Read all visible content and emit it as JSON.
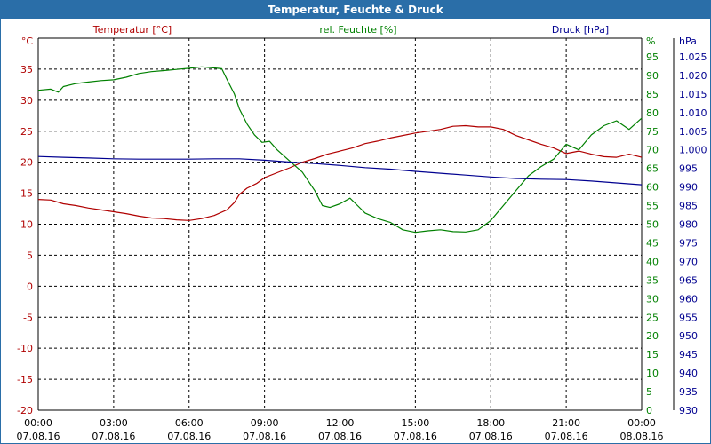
{
  "title": "Temperatur, Feuchte & Druck",
  "colors": {
    "title_bg": "#2a6ea8",
    "temperature": "#b00000",
    "humidity": "#008000",
    "pressure": "#000090",
    "grid": "#000000"
  },
  "chart_data": {
    "type": "line",
    "title": "Temperatur, Feuchte & Druck",
    "grid": true,
    "x_ticks": [
      {
        "time": "00:00",
        "date": "07.08.16"
      },
      {
        "time": "03:00",
        "date": "07.08.16"
      },
      {
        "time": "06:00",
        "date": "07.08.16"
      },
      {
        "time": "09:00",
        "date": "07.08.16"
      },
      {
        "time": "12:00",
        "date": "07.08.16"
      },
      {
        "time": "15:00",
        "date": "07.08.16"
      },
      {
        "time": "18:00",
        "date": "07.08.16"
      },
      {
        "time": "21:00",
        "date": "07.08.16"
      },
      {
        "time": "00:00",
        "date": "08.08.16"
      }
    ],
    "x_range_hours": [
      0,
      24
    ],
    "axes": {
      "temperature": {
        "label": "Temperatur [°C]",
        "unit": "°C",
        "range": [
          -20,
          40
        ],
        "ticks": [
          -20,
          -15,
          -10,
          -5,
          0,
          5,
          10,
          15,
          20,
          25,
          30,
          35
        ]
      },
      "humidity": {
        "label": "rel. Feuchte [%]",
        "unit": "%",
        "range": [
          0,
          100
        ],
        "ticks": [
          0,
          5,
          10,
          15,
          20,
          25,
          30,
          35,
          40,
          45,
          50,
          55,
          60,
          65,
          70,
          75,
          80,
          85,
          90,
          95
        ]
      },
      "pressure": {
        "label": "Druck [hPa]",
        "unit": "hPa",
        "range": [
          930,
          1030
        ],
        "ticks": [
          "930",
          "935",
          "940",
          "945",
          "950",
          "955",
          "960",
          "965",
          "970",
          "975",
          "980",
          "985",
          "990",
          "995",
          "1.000",
          "1.005",
          "1.010",
          "1.015",
          "1.020",
          "1.025"
        ]
      }
    },
    "series": [
      {
        "name": "Temperatur [°C]",
        "axis": "temperature",
        "points": [
          [
            0,
            14
          ],
          [
            0.5,
            13.9
          ],
          [
            1,
            13.3
          ],
          [
            1.5,
            13
          ],
          [
            2,
            12.6
          ],
          [
            2.5,
            12.3
          ],
          [
            3,
            12
          ],
          [
            3.5,
            11.7
          ],
          [
            4,
            11.3
          ],
          [
            4.5,
            11
          ],
          [
            5,
            10.9
          ],
          [
            5.5,
            10.7
          ],
          [
            6,
            10.6
          ],
          [
            6.5,
            10.9
          ],
          [
            7,
            11.4
          ],
          [
            7.5,
            12.3
          ],
          [
            7.8,
            13.5
          ],
          [
            8,
            14.8
          ],
          [
            8.3,
            15.8
          ],
          [
            8.7,
            16.6
          ],
          [
            9,
            17.5
          ],
          [
            9.5,
            18.3
          ],
          [
            10,
            19.1
          ],
          [
            10.5,
            20
          ],
          [
            11,
            20.6
          ],
          [
            11.5,
            21.3
          ],
          [
            12,
            21.8
          ],
          [
            12.5,
            22.3
          ],
          [
            13,
            23
          ],
          [
            13.5,
            23.4
          ],
          [
            14,
            23.9
          ],
          [
            14.5,
            24.3
          ],
          [
            15,
            24.7
          ],
          [
            15.5,
            25
          ],
          [
            16,
            25.3
          ],
          [
            16.5,
            25.8
          ],
          [
            17,
            25.9
          ],
          [
            17.5,
            25.7
          ],
          [
            18,
            25.7
          ],
          [
            18.5,
            25.3
          ],
          [
            19,
            24.3
          ],
          [
            19.5,
            23.6
          ],
          [
            20,
            22.9
          ],
          [
            20.5,
            22.3
          ],
          [
            21,
            21.4
          ],
          [
            21.5,
            21.8
          ],
          [
            22,
            21.3
          ],
          [
            22.5,
            20.9
          ],
          [
            23,
            20.8
          ],
          [
            23.5,
            21.3
          ],
          [
            24,
            20.8
          ]
        ]
      },
      {
        "name": "rel. Feuchte [%]",
        "axis": "humidity",
        "points": [
          [
            0,
            86
          ],
          [
            0.5,
            86.3
          ],
          [
            0.8,
            85.5
          ],
          [
            1,
            87
          ],
          [
            1.5,
            87.8
          ],
          [
            2,
            88.2
          ],
          [
            2.5,
            88.6
          ],
          [
            3,
            88.8
          ],
          [
            3.5,
            89.5
          ],
          [
            4,
            90.5
          ],
          [
            4.5,
            91
          ],
          [
            5,
            91.3
          ],
          [
            5.5,
            91.6
          ],
          [
            6,
            91.9
          ],
          [
            6.5,
            92.3
          ],
          [
            7,
            92
          ],
          [
            7.3,
            91.8
          ],
          [
            7.5,
            89
          ],
          [
            7.8,
            85
          ],
          [
            8,
            81
          ],
          [
            8.3,
            77
          ],
          [
            8.6,
            74
          ],
          [
            8.9,
            72
          ],
          [
            9.2,
            72.3
          ],
          [
            9.5,
            70
          ],
          [
            10,
            67
          ],
          [
            10.5,
            64
          ],
          [
            11,
            59
          ],
          [
            11.3,
            55
          ],
          [
            11.6,
            54.5
          ],
          [
            12,
            55.5
          ],
          [
            12.4,
            57
          ],
          [
            12.7,
            55
          ],
          [
            13,
            53
          ],
          [
            13.5,
            51.5
          ],
          [
            14,
            50.5
          ],
          [
            14.5,
            48.5
          ],
          [
            15,
            47.8
          ],
          [
            15.5,
            48.2
          ],
          [
            16,
            48.5
          ],
          [
            16.5,
            48
          ],
          [
            17,
            47.9
          ],
          [
            17.5,
            48.5
          ],
          [
            18,
            51
          ],
          [
            18.5,
            55
          ],
          [
            19,
            59
          ],
          [
            19.5,
            63
          ],
          [
            20,
            65.5
          ],
          [
            20.5,
            67.5
          ],
          [
            21,
            71.5
          ],
          [
            21.5,
            70
          ],
          [
            22,
            74
          ],
          [
            22.5,
            76.5
          ],
          [
            23,
            77.8
          ],
          [
            23.5,
            75.5
          ],
          [
            24,
            78.5
          ]
        ]
      },
      {
        "name": "Druck [hPa]",
        "axis": "pressure",
        "points": [
          [
            0,
            998.2
          ],
          [
            1,
            998
          ],
          [
            2,
            997.8
          ],
          [
            3,
            997.6
          ],
          [
            4,
            997.5
          ],
          [
            5,
            997.5
          ],
          [
            6,
            997.5
          ],
          [
            7,
            997.6
          ],
          [
            8,
            997.6
          ],
          [
            9,
            997.2
          ],
          [
            10,
            996.7
          ],
          [
            11,
            996.3
          ],
          [
            12,
            995.8
          ],
          [
            13,
            995.2
          ],
          [
            14,
            994.8
          ],
          [
            15,
            994.2
          ],
          [
            16,
            993.7
          ],
          [
            17,
            993.2
          ],
          [
            18,
            992.7
          ],
          [
            19,
            992.3
          ],
          [
            20,
            992.1
          ],
          [
            21,
            992
          ],
          [
            22,
            991.6
          ],
          [
            23,
            991.1
          ],
          [
            24,
            990.6
          ]
        ]
      }
    ]
  }
}
